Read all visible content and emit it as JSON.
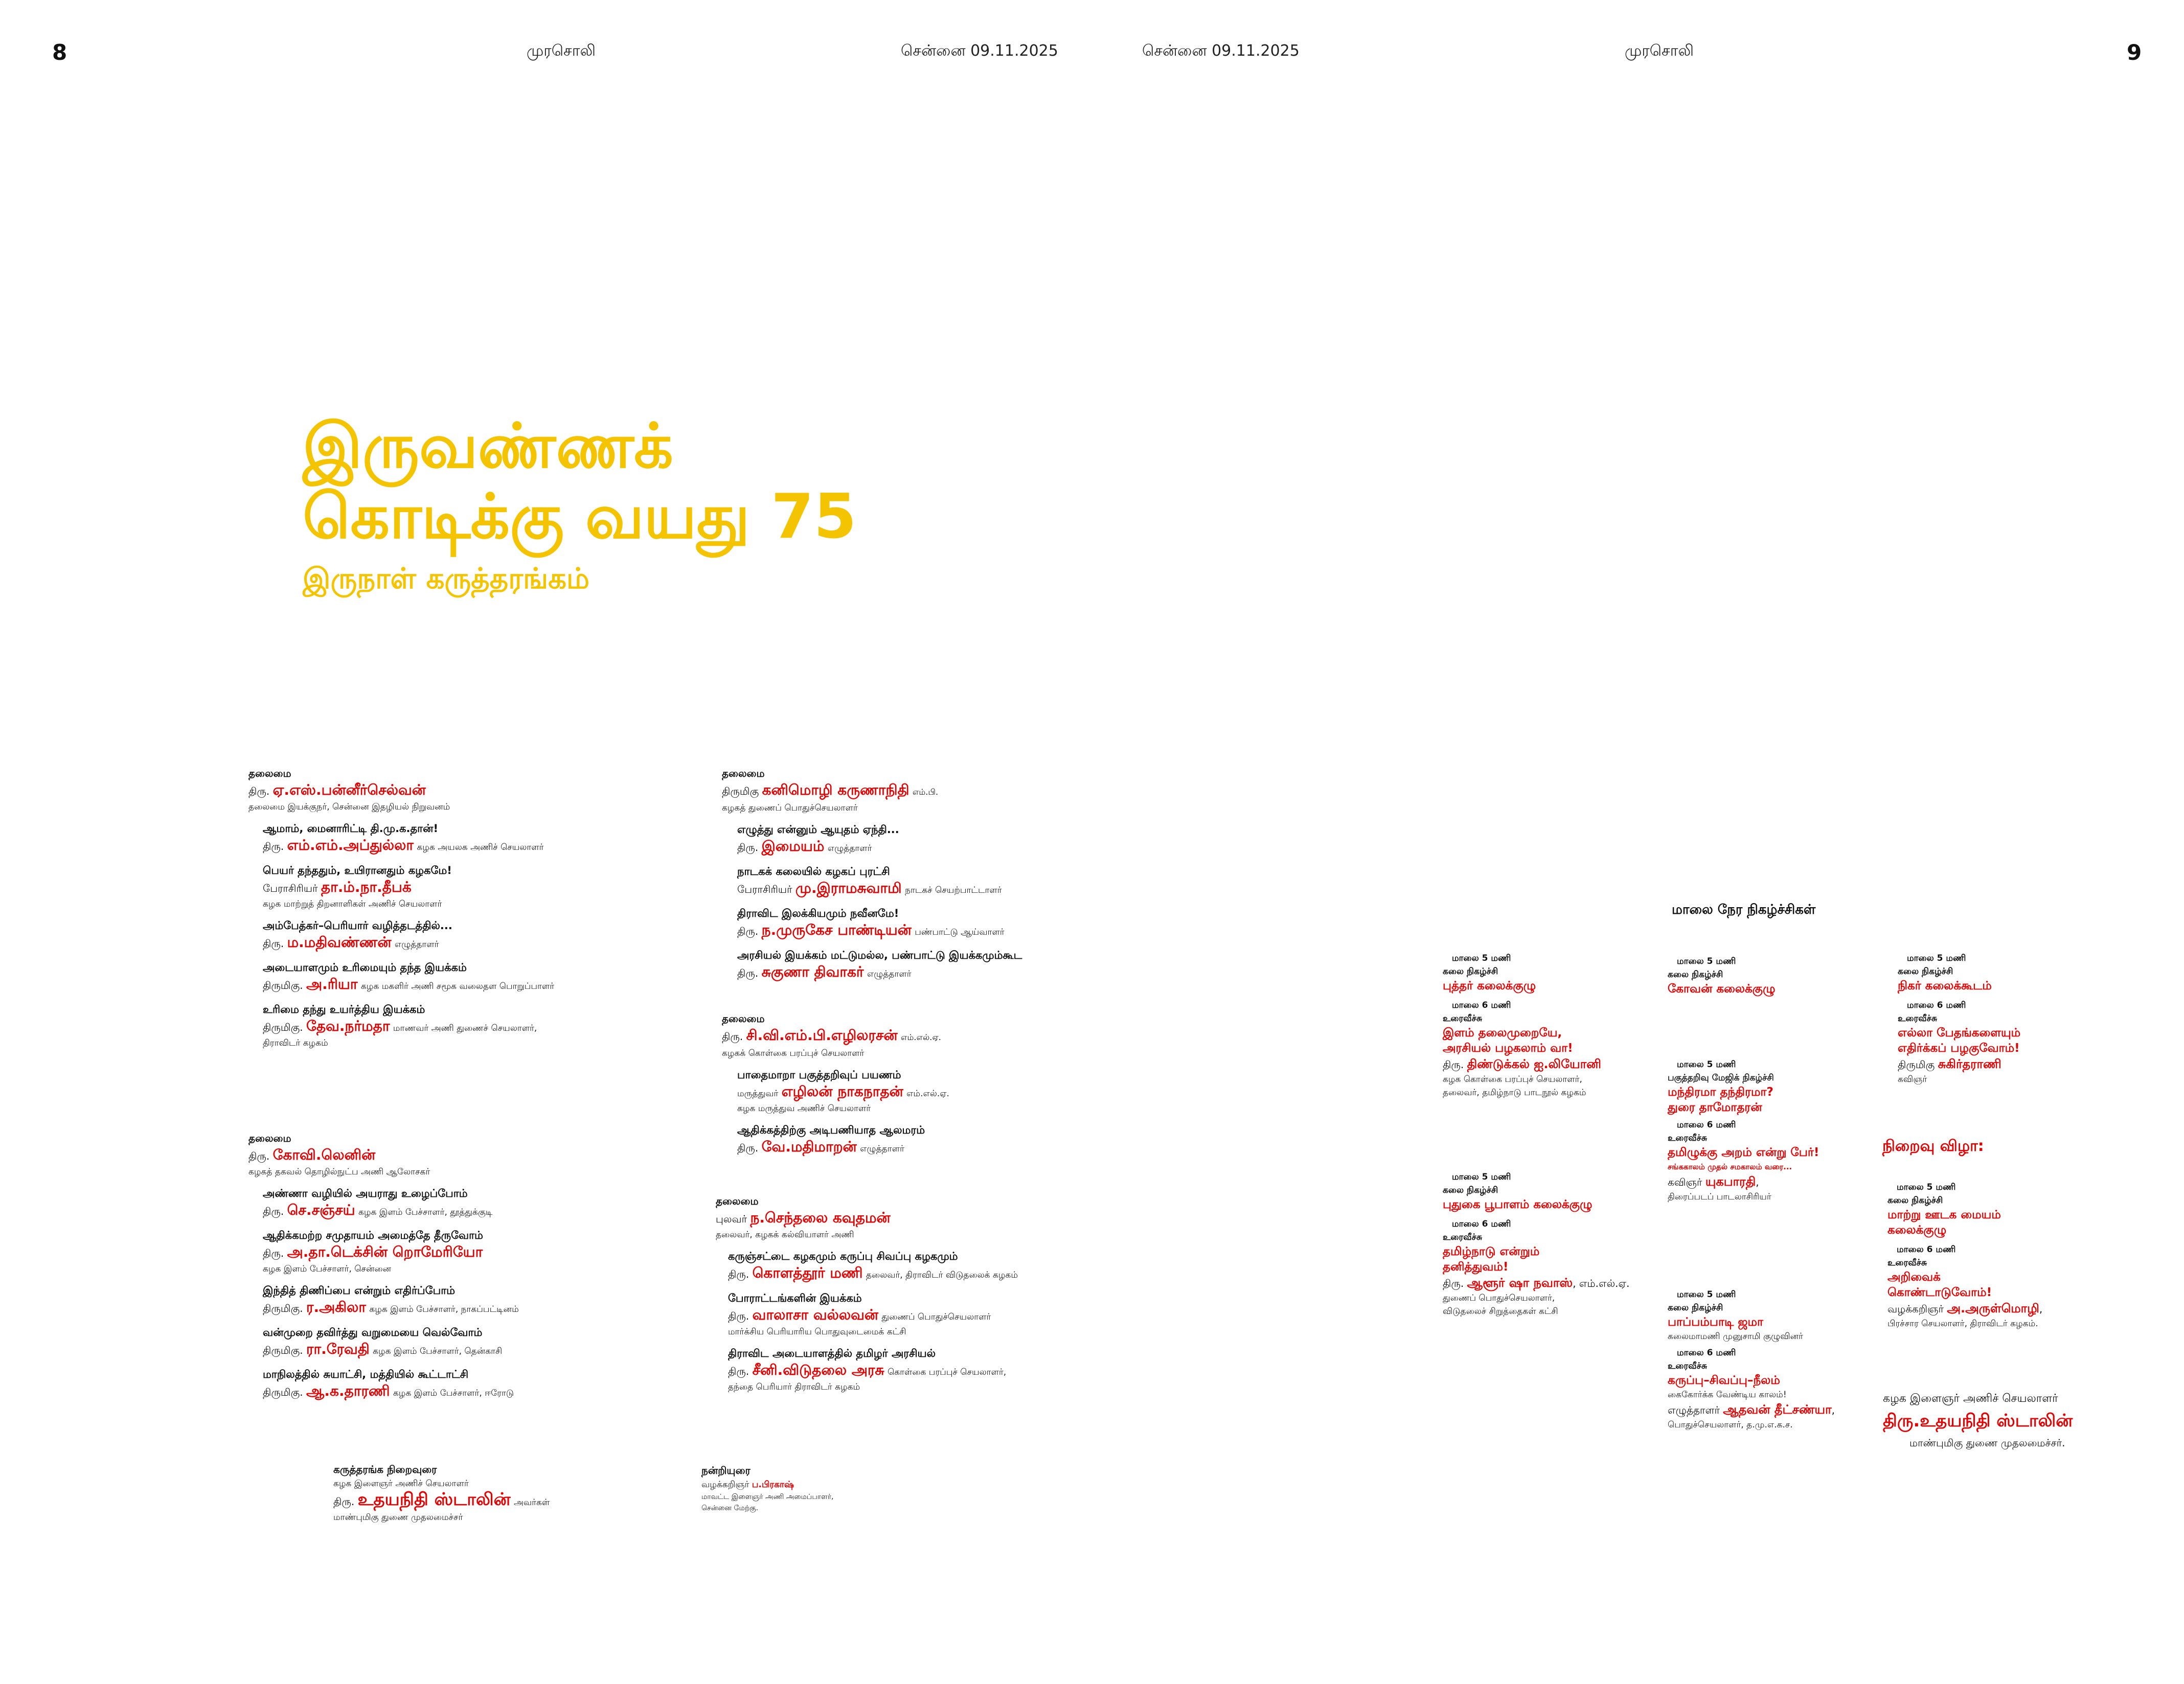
{
  "header": {
    "left_page": "8",
    "right_page": "9",
    "paper_left": "முரசொலி",
    "paper_right": "முரசொலி",
    "date_left": "சென்னை 09.11.2025",
    "date_right": "சென்னை 09.11.2025"
  },
  "headline": {
    "line1": "இருவண்ணக்",
    "line2": "கொடிக்கு வயது 75",
    "subtitle": "இருநாள் கருத்தரங்கம்"
  },
  "sessions": {
    "s1": {
      "label": "தலைமை",
      "prefix": "திரு.",
      "name": "ஏ.எஸ்.பன்னீர்செல்வன்",
      "desc": "தலைமை இயக்குநர், சென்னை இதழியல் நிறுவனம்",
      "talks": [
        {
          "topic": "ஆமாம், மைனாரிட்டி தி.மு.க.தான்!",
          "prefix": "திரு.",
          "name": "எம்.எம்.அப்துல்லா",
          "desc": "கழக அயலக அணிச் செயலாளர்",
          "desc2": ""
        },
        {
          "topic": "பெயர் தந்ததும், உயிரானதும் கழகமே!",
          "prefix": "பேராசிரியர்",
          "name": "தா.ம்.நா.தீபக்",
          "desc": "",
          "desc2": "கழக மாற்றுத் திறனாளிகள் அணிச் செயலாளர்"
        },
        {
          "topic": "அம்பேத்கர்–பெரியார் வழித்தடத்தில்...",
          "prefix": "திரு.",
          "name": "ம.மதிவண்ணன்",
          "desc": "எழுத்தாளர்",
          "desc2": ""
        },
        {
          "topic": "அடையாளமும் உரிமையும் தந்த இயக்கம்",
          "prefix": "திருமிகு.",
          "name": "அ.ரியா",
          "desc": "கழக மகளிர் அணி சமூக வலைதள பொறுப்பாளர்",
          "desc2": ""
        },
        {
          "topic": "உரிமை தந்து உயர்த்திய இயக்கம்",
          "prefix": "திருமிகு.",
          "name": "தேவ.நர்மதா",
          "desc": "மாணவர் அணி துணைச் செயலாளர்,",
          "desc2": "திராவிடர் கழகம்"
        }
      ]
    },
    "s2": {
      "label": "தலைமை",
      "prefix": "திரு.",
      "name": "கோவி.லெனின்",
      "desc": "கழகத் தகவல் தொழில்நுட்ப அணி ஆலோசகர்",
      "talks": [
        {
          "topic": "அண்ணா வழியில் அயராது உழைப்போம்",
          "prefix": "திரு.",
          "name": "செ.சஞ்சய்",
          "desc": "கழக இளம் பேச்சாளர், தூத்துக்குடி",
          "desc2": ""
        },
        {
          "topic": "ஆதிக்கமற்ற சமுதாயம் அமைத்தே தீருவோம்",
          "prefix": "திரு.",
          "name": "அ.தா.டெக்சின் றொமேரியோ",
          "desc": "",
          "desc2": "கழக இளம் பேச்சாளர், சென்னை"
        },
        {
          "topic": "இந்தித் திணிப்பை என்றும் எதிர்ப்போம்",
          "prefix": "திருமிகு.",
          "name": "ர.அகிலா",
          "desc": "கழக இளம் பேச்சாளர், நாகப்பட்டினம்",
          "desc2": ""
        },
        {
          "topic": "வன்முறை தவிர்த்து வறுமையை வெல்வோம்",
          "prefix": "திருமிகு.",
          "name": "ரா.ரேவதி",
          "desc": "கழக இளம் பேச்சாளர், தென்காசி",
          "desc2": ""
        },
        {
          "topic": "மாநிலத்தில் சுயாட்சி, மத்தியில் கூட்டாட்சி",
          "prefix": "திருமிகு.",
          "name": "ஆ.க.தாரணி",
          "desc": "கழக இளம் பேச்சாளர், ஈரோடு",
          "desc2": ""
        }
      ]
    },
    "s3": {
      "label": "தலைமை",
      "prefix": "திருமிகு",
      "name": "கனிமொழி கருணாநிதி",
      "suffix": "எம்.பி.",
      "desc": "கழகத் துணைப் பொதுச்செயலாளர்",
      "talks": [
        {
          "topic": "எழுத்து என்னும் ஆயுதம் ஏந்தி...",
          "prefix": "திரு.",
          "name": "இமையம்",
          "desc": "எழுத்தாளர்",
          "desc2": ""
        },
        {
          "topic": "நாடகக் கலையில் கழகப் புரட்சி",
          "prefix": "பேராசிரியர்",
          "name": "மு.இராமசுவாமி",
          "desc": "நாடகச் செயற்பாட்டாளர்",
          "desc2": ""
        },
        {
          "topic": "திராவிட இலக்கியமும் நவீனமே!",
          "prefix": "திரு.",
          "name": "ந.முருகேச பாண்டியன்",
          "desc": "பண்பாட்டு ஆய்வாளர்",
          "desc2": ""
        },
        {
          "topic": "அரசியல் இயக்கம் மட்டுமல்ல, பண்பாட்டு இயக்கமும்கூட",
          "prefix": "திரு.",
          "name": "சுகுணா திவாகர்",
          "desc": "எழுத்தாளர்",
          "desc2": ""
        }
      ]
    },
    "s4": {
      "label": "தலைமை",
      "prefix": "திரு.",
      "name": "சி.வி.எம்.பி.எழிலரசன்",
      "suffix": "எம்.எல்.ஏ.",
      "desc": "கழகக் கொள்கை பரப்புச் செயலாளர்",
      "talks": [
        {
          "topic": "பாதைமாறா பகுத்தறிவுப் பயணம்",
          "prefix": "மருத்துவர்",
          "name": "எழிலன் நாகநாதன்",
          "desc": "எம்.எல்.ஏ.",
          "desc2": "கழக மருத்துவ அணிச் செயலாளர்"
        },
        {
          "topic": "ஆதிக்கத்திற்கு அடிபணியாத ஆலமரம்",
          "prefix": "திரு.",
          "name": "வே.மதிமாறன்",
          "desc": "எழுத்தாளர்",
          "desc2": ""
        }
      ]
    },
    "s5": {
      "label": "தலைமை",
      "prefix": "புலவர்",
      "name": "ந.செந்தலை கவுதமன்",
      "desc": "தலைவர், கழகக் கல்வியாளர் அணி",
      "talks": [
        {
          "topic": "கருஞ்சட்டை கழகமும் கருப்பு சிவப்பு கழகமும்",
          "prefix": "திரு.",
          "name": "கொளத்தூர் மணி",
          "desc": "தலைவர், திராவிடர் விடுதலைக் கழகம்",
          "desc2": ""
        },
        {
          "topic": "போராட்டங்களின் இயக்கம்",
          "prefix": "திரு.",
          "name": "வாலாசா வல்லவன்",
          "desc": "துணைப் பொதுச்செயலாளர்",
          "desc2": "மார்க்சிய பெரியாரிய பொதுவுடைமைக் கட்சி"
        },
        {
          "topic": "திராவிட அடையாளத்தில் தமிழர் அரசியல்",
          "prefix": "திரு.",
          "name": "சீனி.விடுதலை அரசு",
          "desc": "கொள்கை பரப்புச் செயலாளர்,",
          "desc2": "தந்தை பெரியார் திராவிடர் கழகம்"
        }
      ]
    }
  },
  "closing_left": {
    "label": "கருத்தரங்க நிறைவுரை",
    "role": "கழக இளைஞர் அணிச் செயலாளர்",
    "prefix": "திரு.",
    "name": "உதயநிதி ஸ்டாலின்",
    "suffix": "அவர்கள்",
    "desc": "மாண்புமிகு துணை முதலமைச்சர்"
  },
  "thanks": {
    "label": "நன்றியுரை",
    "line1_pre": "வழக்கறிஞர்",
    "line1_name": "ப.பிரகாஷ்",
    "line2": "மாவட்ட இளைஞர் அணி அமைப்பாளர்,",
    "line3": "சென்னை மேற்கு."
  },
  "evening": {
    "title": "மாலை நேர நிகழ்ச்சிகள்",
    "time5": "மாலை 5 மணி",
    "time6": "மாலை 6 மணி",
    "kalai": "கலை நிகழ்ச்சி",
    "speech": "உரைவீச்சு",
    "c1a": {
      "group": "புத்தர் கலைக்குழு",
      "title1": "இளம் தலைமுறையே,",
      "title2": "அரசியல் பழகலாம் வா!",
      "prefix": "திரு.",
      "name": "திண்டுக்கல் ஐ.லியோனி",
      "d1": "கழக கொள்கை பரப்புச் செயலாளர்,",
      "d2": "தலைவர், தமிழ்நாடு பாடநூல் கழகம்"
    },
    "c1b": {
      "group": "புதுகை பூபாளம் கலைக்குழு",
      "title1": "தமிழ்நாடு என்றும்",
      "title2": "தனித்துவம்!",
      "prefix": "திரு.",
      "name": "ஆளூர் ஷா நவாஸ்",
      "suffix": ", எம்.எல்.ஏ.",
      "d1": "துணைப் பொதுச்செயலாளர்,",
      "d2": "விடுதலைச் சிறுத்தைகள் கட்சி"
    },
    "c2a": {
      "group": "கோவன் கலைக்குழு"
    },
    "c2b": {
      "top": "பகுத்தறிவு மேஜிக் நிகழ்ச்சி",
      "t1": "மந்திரமா தந்திரமா?",
      "t2": "துரை தாமோதரன்",
      "title1": "தமிழுக்கு அறம் என்று பேர்!",
      "sub": "சங்ககாலம் முதல் சமகாலம் வரை...",
      "prefix": "கவிஞர்",
      "name": "யுகபாரதி",
      "d1": "திரைப்படப் பாடலாசிரியர்"
    },
    "c2c": {
      "group": "பாப்பம்பாடி ஜமா",
      "d0": "கலைமாமணி முனுசாமி குழுவினர்",
      "title1": "கருப்பு–சிவப்பு–நீலம்",
      "d1": "கைகோர்க்க வேண்டிய காலம்!",
      "prefix": "எழுத்தாளர்",
      "name": "ஆதவன் தீட்சண்யா",
      "d2": "பொதுச்செயலாளர், த.மு.எ.க.ச."
    },
    "c3a": {
      "group": "நிகர் கலைக்கூடம்",
      "title1": "எல்லா பேதங்களையும்",
      "title2": "எதிர்க்கப் பழகுவோம்!",
      "prefix": "திருமிகு",
      "name": "சுகிர்தராணி",
      "d1": "கவிஞர்"
    },
    "closing_title": "நிறைவு விழா:",
    "c3b": {
      "group1": "மாற்று ஊடக மையம்",
      "group2": "கலைக்குழு",
      "title1": "அறிவைக்",
      "title2": "கொண்டாடுவோம்!",
      "prefix": "வழக்கறிஞர்",
      "name": "அ.அருள்மொழி",
      "d1": "பிரச்சார செயலாளர், திராவிடர் கழகம்."
    },
    "final": {
      "role": "கழக இளைஞர் அணிச் செயலாளர்",
      "name": "திரு.உதயநிதி ஸ்டாலின்",
      "desc": "மாண்புமிகு துணை முதலமைச்சர்."
    }
  },
  "colors": {
    "headline": "#f5c400",
    "accent_red": "#e60000",
    "text": "#111111",
    "background": "#ffffff"
  }
}
